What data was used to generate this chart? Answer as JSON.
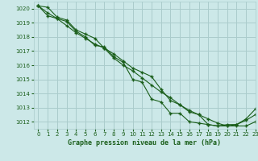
{
  "title": "Graphe pression niveau de la mer (hPa)",
  "bg_color": "#cce8e8",
  "grid_color": "#aacccc",
  "line_color": "#1a5e1a",
  "marker_color": "#1a5e1a",
  "xlim": [
    -0.5,
    23
  ],
  "ylim": [
    1011.5,
    1020.5
  ],
  "yticks": [
    1012,
    1013,
    1014,
    1015,
    1016,
    1017,
    1018,
    1019,
    1020
  ],
  "xticks": [
    0,
    1,
    2,
    3,
    4,
    5,
    6,
    7,
    8,
    9,
    10,
    11,
    12,
    13,
    14,
    15,
    16,
    17,
    18,
    19,
    20,
    21,
    22,
    23
  ],
  "series1_x": [
    0,
    1,
    2,
    3,
    4,
    5,
    6,
    7,
    8,
    9,
    10,
    11,
    12,
    13,
    14,
    15,
    16,
    17,
    18,
    19,
    20,
    21,
    22,
    23
  ],
  "series1_y": [
    1020.2,
    1020.1,
    1019.4,
    1019.2,
    1018.5,
    1018.2,
    1017.9,
    1017.2,
    1016.8,
    1016.3,
    1015.8,
    1015.5,
    1015.2,
    1014.3,
    1013.5,
    1013.2,
    1012.7,
    1012.5,
    1011.8,
    1011.7,
    1011.7,
    1011.7,
    1011.7,
    1012.0
  ],
  "series2_x": [
    0,
    1,
    2,
    3,
    4,
    5,
    6,
    7,
    8,
    9,
    10,
    11,
    12,
    13,
    14,
    15,
    16,
    17,
    18,
    19,
    20,
    21,
    22,
    23
  ],
  "series2_y": [
    1020.2,
    1019.7,
    1019.3,
    1019.1,
    1018.4,
    1018.0,
    1017.4,
    1017.3,
    1016.6,
    1016.2,
    1015.0,
    1014.8,
    1013.6,
    1013.4,
    1012.6,
    1012.6,
    1012.0,
    1011.9,
    1011.8,
    1011.7,
    1011.8,
    1011.8,
    1012.2,
    1012.9
  ],
  "series3_x": [
    0,
    1,
    2,
    3,
    4,
    5,
    6,
    7,
    8,
    9,
    10,
    11,
    12,
    13,
    14,
    15,
    16,
    17,
    18,
    19,
    20,
    21,
    22,
    23
  ],
  "series3_y": [
    1020.2,
    1019.5,
    1019.3,
    1018.8,
    1018.3,
    1017.9,
    1017.5,
    1017.2,
    1016.5,
    1016.0,
    1015.6,
    1015.1,
    1014.6,
    1014.1,
    1013.7,
    1013.2,
    1012.8,
    1012.5,
    1012.2,
    1011.9,
    1011.7,
    1011.8,
    1012.1,
    1012.5
  ]
}
